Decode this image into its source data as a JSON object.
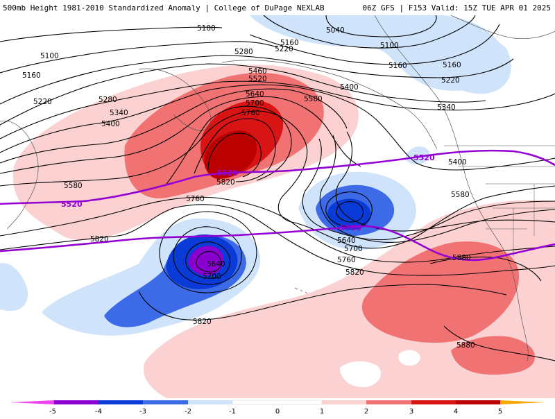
{
  "header": {
    "left_title": "500mb Height 1981-2010 Standardized Anomaly | College of DuPage NEXLAB",
    "right_title": "06Z GFS | F153 Valid: 15Z TUE APR 01 2025"
  },
  "colors": {
    "neg5": "#ee44ee",
    "neg4": "#8a00d0",
    "neg3": "#0a3bd6",
    "neg2": "#3d6be8",
    "neg1": "#cfe3fb",
    "pos1": "#fbd1d1",
    "pos2": "#f07272",
    "pos3": "#d81414",
    "pos4": "#bb0000",
    "pos5": "#f5a800",
    "contour": "#000000",
    "highlight_contour": "#9400d3"
  },
  "colorbar": {
    "ticks": [
      "-5",
      "-4",
      "-3",
      "-2",
      "-1",
      "0",
      "1",
      "2",
      "3",
      "4",
      "5"
    ]
  },
  "contour_labels": [
    {
      "text": "5100",
      "id": "c5100a"
    },
    {
      "text": "5040",
      "id": "c5040"
    },
    {
      "text": "5100",
      "id": "c5100b"
    },
    {
      "text": "5160",
      "id": "c5160a"
    },
    {
      "text": "5220",
      "id": "c5220a"
    },
    {
      "text": "5280",
      "id": "c5280a"
    },
    {
      "text": "5160",
      "id": "c5160b"
    },
    {
      "text": "5100",
      "id": "c5100c"
    },
    {
      "text": "5160",
      "id": "c5160c"
    },
    {
      "text": "5220",
      "id": "c5220b"
    },
    {
      "text": "5460",
      "id": "c5460"
    },
    {
      "text": "5520",
      "id": "c5520a"
    },
    {
      "text": "5400",
      "id": "c5400a"
    },
    {
      "text": "5160",
      "id": "c5160d"
    },
    {
      "text": "5220",
      "id": "c5220c"
    },
    {
      "text": "5280",
      "id": "c5280b"
    },
    {
      "text": "5640",
      "id": "c5640a"
    },
    {
      "text": "5580",
      "id": "c5580a"
    },
    {
      "text": "5700",
      "id": "c5700a"
    },
    {
      "text": "5340",
      "id": "c5340a"
    },
    {
      "text": "5760",
      "id": "c5760a"
    },
    {
      "text": "5340",
      "id": "c5340b"
    },
    {
      "text": "5400",
      "id": "c5400b"
    },
    {
      "text": "5400",
      "id": "c5400c"
    },
    {
      "text": "5820",
      "id": "c5820a"
    },
    {
      "text": "5580",
      "id": "c5580b"
    },
    {
      "text": "5760",
      "id": "c5760b"
    },
    {
      "text": "5580",
      "id": "c5580c"
    },
    {
      "text": "5820",
      "id": "c5820b"
    },
    {
      "text": "5640",
      "id": "c5640b"
    },
    {
      "text": "5700",
      "id": "c5700b"
    },
    {
      "text": "5640",
      "id": "c5640c"
    },
    {
      "text": "5700",
      "id": "c5700c"
    },
    {
      "text": "5760",
      "id": "c5760c"
    },
    {
      "text": "5820",
      "id": "c5820c"
    },
    {
      "text": "5880",
      "id": "c5880a"
    },
    {
      "text": "5820",
      "id": "c5820d"
    },
    {
      "text": "5880",
      "id": "c5880b"
    }
  ],
  "highlight_labels": [
    {
      "text": "5520",
      "id": "p5520a"
    },
    {
      "text": "5520",
      "id": "p5520b"
    },
    {
      "text": "5520",
      "id": "p5520c"
    },
    {
      "text": "5760",
      "id": "p5760"
    }
  ]
}
